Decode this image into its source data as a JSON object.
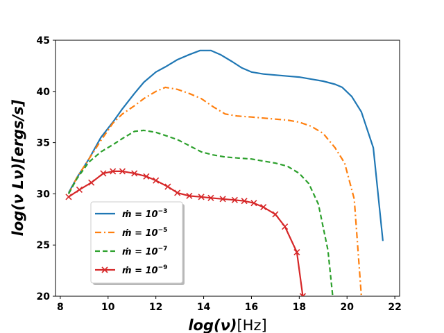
{
  "chart_data": {
    "type": "line",
    "xlabel": {
      "main": "log(ν)",
      "unit": "[Hz]"
    },
    "ylabel": "log(ν Lν)[ergs/s]",
    "xlim": [
      7.8,
      22.2
    ],
    "ylim": [
      20,
      45
    ],
    "xticks": [
      8,
      10,
      12,
      14,
      16,
      18,
      20,
      22
    ],
    "yticks": [
      20,
      25,
      30,
      35,
      40,
      45
    ],
    "legend_position": "lower-left",
    "series": [
      {
        "name": "ṁ = 10⁻³",
        "legend_base": "ṁ = 10",
        "legend_exp": "−3",
        "color": "#1f77b4",
        "style": "solid",
        "marker": "none",
        "x": [
          8.35,
          8.7,
          9.2,
          9.7,
          10.2,
          10.6,
          11.1,
          11.5,
          12.0,
          12.4,
          12.9,
          13.4,
          13.85,
          14.3,
          14.7,
          15.2,
          15.6,
          16.0,
          16.5,
          17.0,
          17.5,
          18.0,
          18.5,
          19.0,
          19.5,
          19.8,
          20.2,
          20.6,
          21.1,
          21.5
        ],
        "y": [
          30.1,
          31.6,
          33.4,
          35.5,
          37.0,
          38.3,
          39.8,
          40.9,
          41.9,
          42.4,
          43.1,
          43.6,
          44.0,
          44.0,
          43.6,
          42.9,
          42.3,
          41.9,
          41.7,
          41.6,
          41.5,
          41.4,
          41.2,
          41.0,
          40.7,
          40.4,
          39.5,
          38.0,
          34.5,
          25.4
        ]
      },
      {
        "name": "ṁ = 10⁻⁵",
        "legend_base": "ṁ = 10",
        "legend_exp": "−5",
        "color": "#ff7f0e",
        "style": "dashdot",
        "marker": "none",
        "x": [
          8.35,
          8.7,
          9.2,
          9.7,
          10.2,
          10.6,
          11.1,
          11.5,
          12.0,
          12.4,
          12.9,
          13.4,
          13.9,
          14.4,
          14.9,
          15.4,
          16.0,
          16.5,
          17.0,
          17.5,
          18.0,
          18.5,
          19.0,
          19.5,
          19.9,
          20.3,
          20.6
        ],
        "y": [
          30.0,
          31.6,
          33.4,
          35.2,
          36.9,
          37.8,
          38.6,
          39.3,
          40.0,
          40.4,
          40.2,
          39.8,
          39.3,
          38.5,
          37.8,
          37.6,
          37.5,
          37.4,
          37.3,
          37.2,
          37.0,
          36.6,
          35.9,
          34.5,
          33.0,
          29.5,
          20.0
        ]
      },
      {
        "name": "ṁ = 10⁻⁷",
        "legend_base": "ṁ = 10",
        "legend_exp": "−7",
        "color": "#2ca02c",
        "style": "dashed",
        "marker": "none",
        "x": [
          8.35,
          8.7,
          9.2,
          9.7,
          10.2,
          10.6,
          11.1,
          11.5,
          12.0,
          12.4,
          12.9,
          13.4,
          13.9,
          14.4,
          14.9,
          15.4,
          16.0,
          16.5,
          17.0,
          17.5,
          18.0,
          18.4,
          18.8,
          19.2,
          19.4
        ],
        "y": [
          30.0,
          31.5,
          33.1,
          34.1,
          34.8,
          35.4,
          36.1,
          36.2,
          36.0,
          35.7,
          35.3,
          34.7,
          34.1,
          33.8,
          33.6,
          33.5,
          33.4,
          33.2,
          33.0,
          32.7,
          32.0,
          31.0,
          29.0,
          24.5,
          20.0
        ]
      },
      {
        "name": "ṁ = 10⁻⁹",
        "legend_base": "ṁ = 10",
        "legend_exp": "−9",
        "color": "#d62728",
        "style": "solid",
        "marker": "x",
        "x": [
          8.35,
          8.8,
          9.3,
          9.8,
          10.2,
          10.6,
          11.1,
          11.6,
          12.0,
          12.5,
          12.9,
          13.4,
          13.9,
          14.3,
          14.8,
          15.3,
          15.7,
          16.1,
          16.5,
          17.0,
          17.4,
          17.9,
          18.15
        ],
        "y": [
          29.7,
          30.4,
          31.1,
          32.0,
          32.2,
          32.2,
          32.0,
          31.7,
          31.3,
          30.7,
          30.1,
          29.8,
          29.7,
          29.6,
          29.5,
          29.4,
          29.3,
          29.1,
          28.7,
          28.0,
          26.8,
          24.3,
          20.0
        ]
      }
    ]
  }
}
